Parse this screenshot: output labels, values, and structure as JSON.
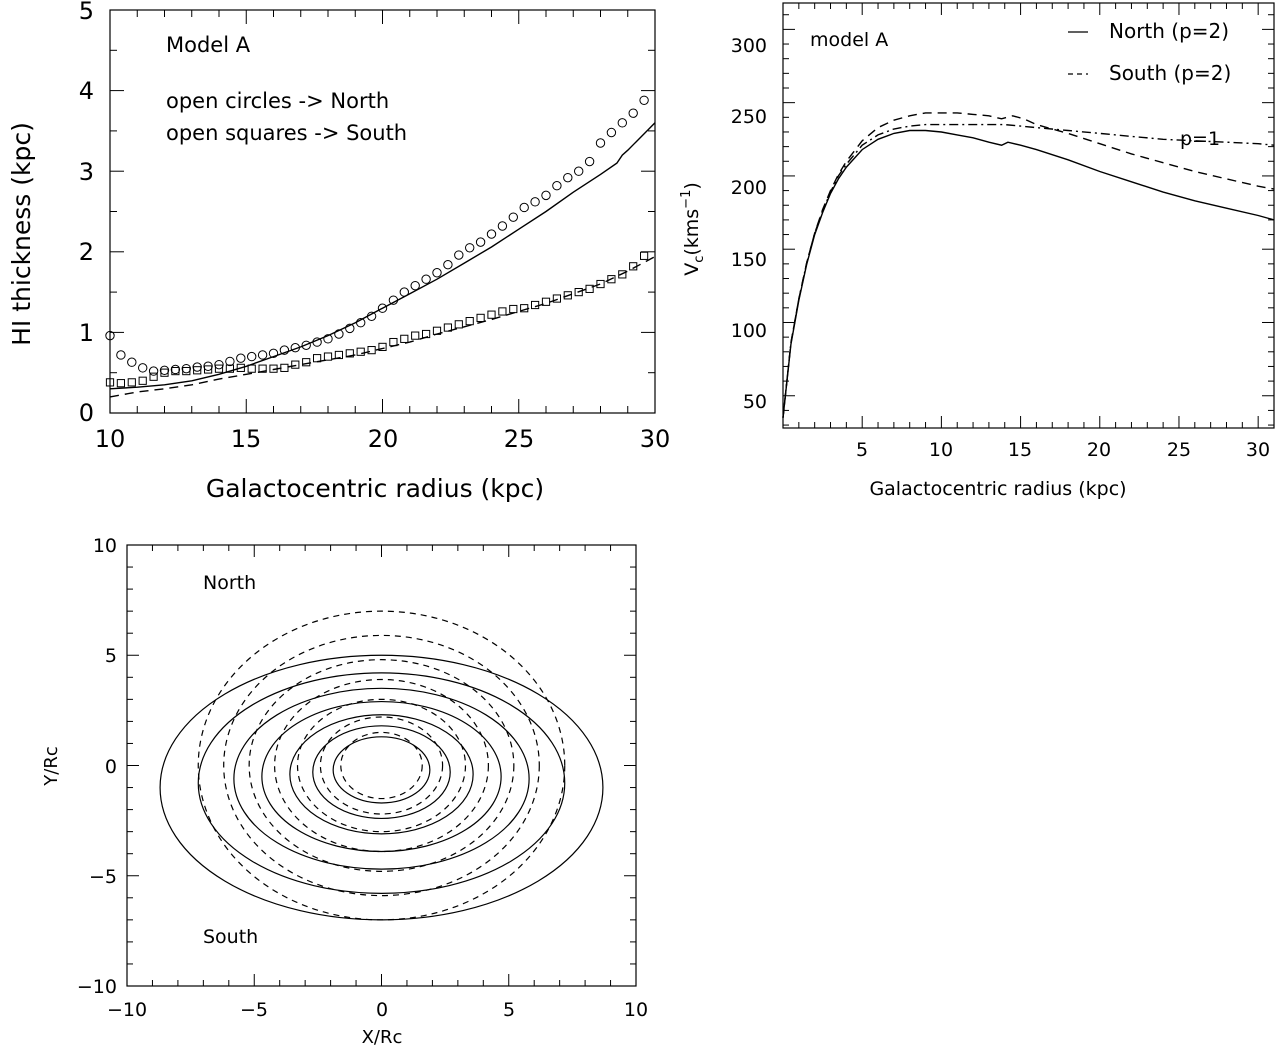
{
  "chart_data": [
    {
      "type": "scatter",
      "xlabel": "Galactocentric radius (kpc)",
      "ylabel": "HI thickness (kpc)",
      "xlim": [
        10,
        30
      ],
      "ylim": [
        0,
        5
      ],
      "xticks": [
        10,
        15,
        20,
        25,
        30
      ],
      "yticks": [
        0,
        1,
        2,
        3,
        4,
        5
      ],
      "annotations": [
        "Model A",
        "open circles -> North",
        "open squares -> South"
      ],
      "series": [
        {
          "name": "open circles -> North",
          "style": "open-circle",
          "x": [
            10,
            10.4,
            10.8,
            11.2,
            11.6,
            12.0,
            12.4,
            12.8,
            13.2,
            13.6,
            14.0,
            14.4,
            14.8,
            15.2,
            15.6,
            16.0,
            16.4,
            16.8,
            17.2,
            17.6,
            18.0,
            18.4,
            18.8,
            19.2,
            19.6,
            20.0,
            20.4,
            20.8,
            21.2,
            21.6,
            22.0,
            22.4,
            22.8,
            23.2,
            23.6,
            24.0,
            24.4,
            24.8,
            25.2,
            25.6,
            26.0,
            26.4,
            26.8,
            27.2,
            27.6,
            28.0,
            28.4,
            28.8,
            29.2,
            29.6
          ],
          "y": [
            0.96,
            0.72,
            0.63,
            0.56,
            0.52,
            0.53,
            0.54,
            0.55,
            0.57,
            0.58,
            0.6,
            0.64,
            0.68,
            0.7,
            0.72,
            0.74,
            0.78,
            0.81,
            0.84,
            0.88,
            0.92,
            0.98,
            1.05,
            1.12,
            1.2,
            1.3,
            1.4,
            1.5,
            1.58,
            1.66,
            1.74,
            1.84,
            1.96,
            2.05,
            2.12,
            2.22,
            2.32,
            2.43,
            2.55,
            2.62,
            2.7,
            2.82,
            2.92,
            3.0,
            3.12,
            3.35,
            3.48,
            3.6,
            3.72,
            3.88
          ]
        },
        {
          "name": "open squares -> South",
          "style": "open-square",
          "x": [
            10,
            10.4,
            10.8,
            11.2,
            11.6,
            12.0,
            12.4,
            12.8,
            13.2,
            13.6,
            14.0,
            14.4,
            14.8,
            15.2,
            15.6,
            16.0,
            16.4,
            16.8,
            17.2,
            17.6,
            18.0,
            18.4,
            18.8,
            19.2,
            19.6,
            20.0,
            20.4,
            20.8,
            21.2,
            21.6,
            22.0,
            22.4,
            22.8,
            23.2,
            23.6,
            24.0,
            24.4,
            24.8,
            25.2,
            25.6,
            26.0,
            26.4,
            26.8,
            27.2,
            27.6,
            28.0,
            28.4,
            28.8,
            29.2,
            29.6
          ],
          "y": [
            0.38,
            0.37,
            0.38,
            0.4,
            0.45,
            0.5,
            0.52,
            0.52,
            0.53,
            0.54,
            0.55,
            0.55,
            0.56,
            0.55,
            0.55,
            0.55,
            0.56,
            0.6,
            0.63,
            0.68,
            0.7,
            0.72,
            0.74,
            0.76,
            0.78,
            0.82,
            0.88,
            0.92,
            0.96,
            0.98,
            1.02,
            1.06,
            1.1,
            1.14,
            1.18,
            1.22,
            1.26,
            1.29,
            1.3,
            1.34,
            1.38,
            1.42,
            1.46,
            1.5,
            1.54,
            1.6,
            1.66,
            1.72,
            1.82,
            1.95
          ]
        },
        {
          "name": "",
          "style": "solid",
          "x": [
            10,
            11,
            12,
            13,
            14,
            15,
            16,
            17,
            18,
            19,
            20,
            21,
            22,
            23,
            24,
            25,
            26,
            27,
            28,
            28.6,
            28.8,
            29,
            30
          ],
          "y": [
            0.3,
            0.32,
            0.35,
            0.4,
            0.48,
            0.58,
            0.7,
            0.82,
            0.96,
            1.12,
            1.3,
            1.48,
            1.66,
            1.86,
            2.06,
            2.28,
            2.5,
            2.74,
            2.96,
            3.1,
            3.2,
            3.26,
            3.6
          ]
        },
        {
          "name": "",
          "style": "dashed",
          "x": [
            10,
            11,
            12,
            13,
            14,
            15,
            16,
            17,
            18,
            19,
            20,
            21,
            22,
            23,
            24,
            25,
            26,
            27,
            28,
            29,
            30
          ],
          "y": [
            0.2,
            0.26,
            0.3,
            0.35,
            0.42,
            0.48,
            0.54,
            0.6,
            0.66,
            0.72,
            0.8,
            0.88,
            0.98,
            1.07,
            1.16,
            1.26,
            1.36,
            1.48,
            1.6,
            1.76,
            1.94
          ]
        }
      ]
    },
    {
      "type": "line",
      "xlabel": "Galactocentric radius (kpc)",
      "ylabel": "V_c(kms^-1)",
      "ylabel_parts": {
        "v": "V",
        "sub": "c",
        "mid": "(kms",
        "sup": "−1",
        "end": ")"
      },
      "xlim": [
        0,
        31
      ],
      "ylim": [
        28,
        318
      ],
      "xticks": [
        5,
        10,
        15,
        20,
        25,
        30
      ],
      "yticks": [
        50,
        100,
        150,
        200,
        250,
        300
      ],
      "annotations": [
        "model A",
        "p=1"
      ],
      "legend": {
        "position": "top-right",
        "entries": [
          "North (p=2)",
          "South (p=2)"
        ]
      },
      "series": [
        {
          "name": "North (p=2)",
          "style": "solid",
          "x": [
            0,
            0.5,
            1,
            1.5,
            2,
            2.5,
            3,
            3.5,
            4,
            5,
            6,
            7,
            8,
            9,
            10,
            11,
            12,
            13,
            13.8,
            14.2,
            15,
            16,
            18,
            20,
            22,
            24,
            26,
            28,
            30,
            31
          ],
          "y": [
            35,
            85,
            115,
            140,
            160,
            175,
            188,
            198,
            206,
            218,
            225,
            229,
            231,
            231,
            230,
            228,
            226,
            223,
            221,
            223,
            221,
            218,
            211,
            203,
            196,
            189,
            183,
            178,
            173,
            170
          ]
        },
        {
          "name": "South (p=2)",
          "style": "dashed",
          "x": [
            0,
            0.5,
            1,
            1.5,
            2,
            2.5,
            3,
            3.5,
            4,
            5,
            6,
            7,
            8,
            9,
            10,
            11,
            12,
            13,
            13.8,
            14.5,
            15.2,
            16,
            18,
            20,
            22,
            24,
            26,
            28,
            30,
            31
          ],
          "y": [
            35,
            86,
            116,
            141,
            161,
            177,
            190,
            201,
            210,
            224,
            233,
            238,
            241,
            243,
            243,
            243,
            242,
            241,
            239,
            241,
            239,
            235,
            229,
            222,
            215,
            209,
            203,
            198,
            193,
            191
          ]
        },
        {
          "name": "p=1",
          "style": "dash-dot",
          "x": [
            0,
            0.5,
            1,
            1.5,
            2,
            2.5,
            3,
            3.5,
            4,
            5,
            6,
            7,
            8,
            9,
            10,
            11,
            12,
            13,
            14,
            15,
            16,
            18,
            20,
            22,
            24,
            26,
            28,
            30,
            31
          ],
          "y": [
            35,
            86,
            116,
            141,
            161,
            176,
            189,
            200,
            208,
            221,
            228,
            232,
            234,
            235,
            235,
            235,
            235,
            235,
            235,
            234,
            233,
            231,
            229,
            227,
            225,
            224,
            223,
            222,
            221
          ]
        }
      ]
    },
    {
      "type": "scatter",
      "xlabel": "X/Rc",
      "ylabel": "Y/Rc",
      "xlim": [
        -10,
        10
      ],
      "ylim": [
        -10,
        10
      ],
      "xticks": [
        -10,
        -5,
        0,
        5,
        10
      ],
      "yticks": [
        -10,
        -5,
        0,
        5,
        10
      ],
      "annotations": [
        "North",
        "South"
      ],
      "series": [
        {
          "name": "",
          "style": "solid",
          "shape": "ellipse",
          "cx": [
            0,
            0,
            0,
            0,
            0,
            0,
            0
          ],
          "cy": [
            -1,
            -0.8,
            -0.6,
            -0.5,
            -0.4,
            -0.3,
            -0.2
          ],
          "rx": [
            8.7,
            7.2,
            5.8,
            4.7,
            3.6,
            2.7,
            1.9
          ],
          "ry": [
            6,
            5,
            4.1,
            3.4,
            2.7,
            2.1,
            1.5
          ]
        },
        {
          "name": "",
          "style": "dashed",
          "shape": "ellipse",
          "cx": [
            0,
            0,
            0,
            0,
            0,
            0,
            0
          ],
          "cy": [
            0,
            0,
            0,
            0,
            0,
            0,
            0
          ],
          "rx": [
            7.2,
            6.2,
            5.2,
            4.2,
            3.3,
            2.4,
            1.6
          ],
          "ry": [
            7,
            5.9,
            4.8,
            3.9,
            3,
            2.2,
            1.5
          ]
        }
      ]
    }
  ]
}
